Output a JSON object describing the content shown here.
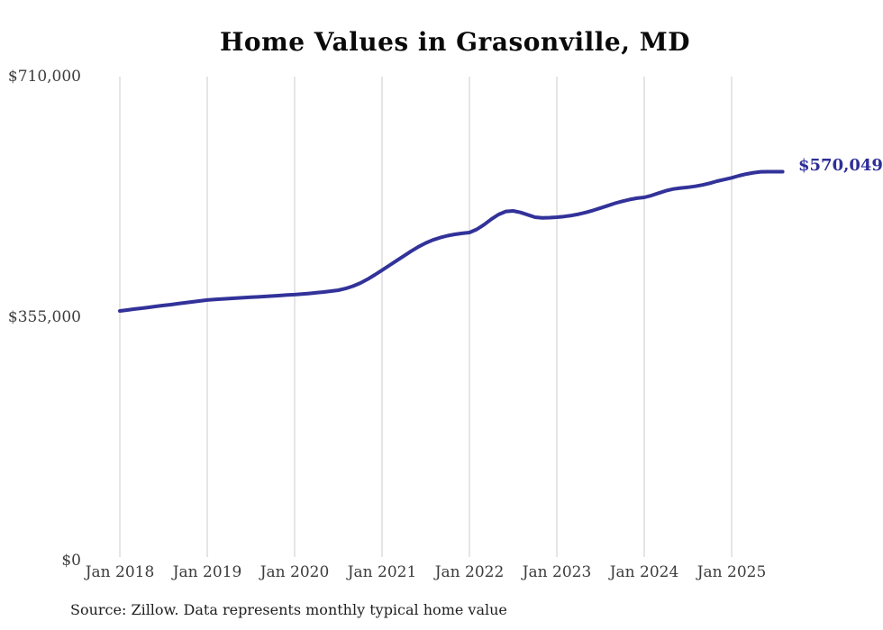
{
  "chart_data": {
    "type": "line",
    "title": "Home Values in Grasonville, MD",
    "series_name": "Typical home value",
    "unit": "USD",
    "start_month": "2018-01",
    "end_month": "2025-08",
    "x_tick_labels": [
      "Jan 2018",
      "Jan 2019",
      "Jan 2020",
      "Jan 2021",
      "Jan 2022",
      "Jan 2023",
      "Jan 2024",
      "Jan 2025"
    ],
    "y_tick_labels": [
      "$0",
      "$355,000",
      "$710,000"
    ],
    "ylim": [
      0,
      710000
    ],
    "grid": true,
    "line_color": "#32329a",
    "grid_color": "#cbcbcb",
    "end_label": "$570,049",
    "end_value": 570049,
    "source_note": "Source: Zillow. Data represents monthly typical home value",
    "values": [
      365000,
      366300,
      367700,
      369000,
      370300,
      371700,
      373000,
      374300,
      375700,
      377000,
      378300,
      379700,
      381000,
      381800,
      382500,
      383200,
      383900,
      384500,
      385100,
      385700,
      386300,
      387000,
      387700,
      388400,
      389000,
      389800,
      390700,
      391700,
      392800,
      394100,
      395500,
      398000,
      401500,
      406000,
      411500,
      418000,
      425000,
      432000,
      439000,
      446000,
      453000,
      459500,
      465000,
      469500,
      473000,
      475800,
      477800,
      479200,
      480400,
      485000,
      492000,
      500000,
      507000,
      511500,
      512200,
      510000,
      506500,
      503000,
      502000,
      502300,
      503000,
      504000,
      505500,
      507500,
      510000,
      513000,
      516500,
      520000,
      523500,
      526500,
      529000,
      531000,
      532200,
      535000,
      538500,
      542000,
      544500,
      546000,
      547000,
      548500,
      550500,
      553000,
      556000,
      558500,
      561000,
      564000,
      566500,
      568500,
      569800,
      570000,
      570000,
      570049
    ]
  }
}
